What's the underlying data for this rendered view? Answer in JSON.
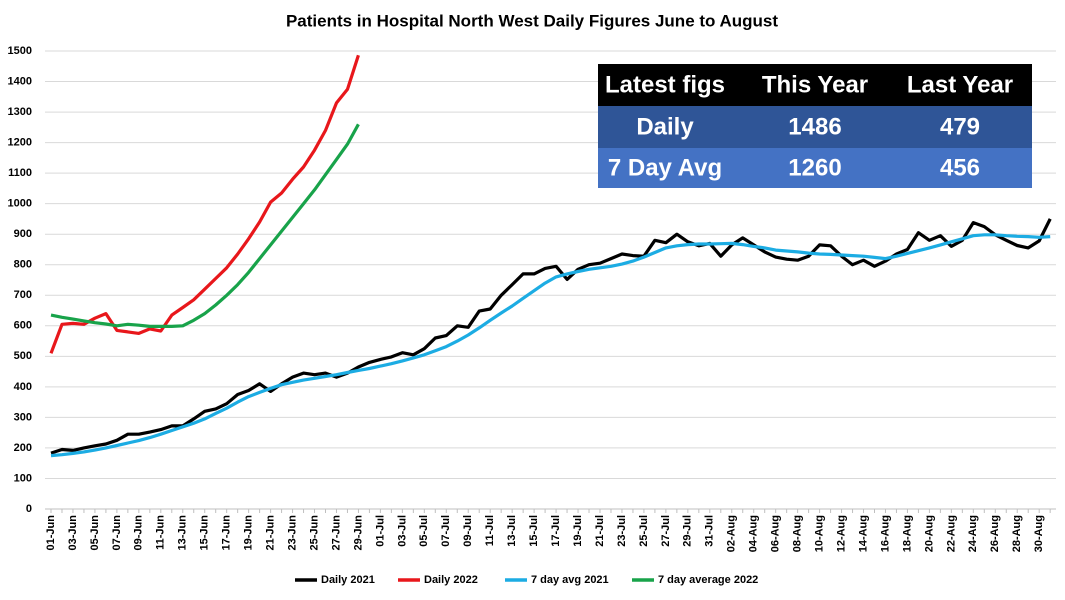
{
  "chart_data": {
    "type": "line",
    "title": "Patients in Hospital  North West Daily Figures June to August",
    "categories": [
      "01-Jun",
      null,
      "03-Jun",
      null,
      "05-Jun",
      null,
      "07-Jun",
      null,
      "09-Jun",
      null,
      "11-Jun",
      null,
      "13-Jun",
      null,
      "15-Jun",
      null,
      "17-Jun",
      null,
      "19-Jun",
      null,
      "21-Jun",
      null,
      "23-Jun",
      null,
      "25-Jun",
      null,
      "27-Jun",
      null,
      "29-Jun",
      null,
      "01-Jul",
      null,
      "03-Jul",
      null,
      "05-Jul",
      null,
      "07-Jul",
      null,
      "09-Jul",
      null,
      "11-Jul",
      null,
      "13-Jul",
      null,
      "15-Jul",
      null,
      "17-Jul",
      null,
      "19-Jul",
      null,
      "21-Jul",
      null,
      "23-Jul",
      null,
      "25-Jul",
      null,
      "27-Jul",
      null,
      "29-Jul",
      null,
      "31-Jul",
      null,
      "02-Aug",
      null,
      "04-Aug",
      null,
      "06-Aug",
      null,
      "08-Aug",
      null,
      "10-Aug",
      null,
      "12-Aug",
      null,
      "14-Aug",
      null,
      "16-Aug",
      null,
      "18-Aug",
      null,
      "20-Aug",
      null,
      "22-Aug",
      null,
      "24-Aug",
      null,
      "26-Aug",
      null,
      "28-Aug",
      null,
      "30-Aug",
      null
    ],
    "series": [
      {
        "name": "Daily 2021",
        "color": "#000000",
        "values": [
          183,
          195,
          192,
          200,
          207,
          213,
          225,
          245,
          245,
          252,
          260,
          272,
          272,
          295,
          320,
          328,
          345,
          375,
          388,
          410,
          385,
          410,
          432,
          445,
          440,
          445,
          432,
          445,
          465,
          480,
          490,
          498,
          512,
          505,
          525,
          560,
          568,
          600,
          595,
          648,
          655,
          700,
          735,
          770,
          770,
          788,
          795,
          752,
          785,
          800,
          805,
          820,
          835,
          830,
          828,
          880,
          872,
          900,
          875,
          862,
          870,
          828,
          865,
          888,
          865,
          842,
          825,
          818,
          815,
          828,
          865,
          862,
          828,
          800,
          815,
          795,
          812,
          835,
          850,
          905,
          880,
          895,
          860,
          880,
          938,
          925,
          898,
          880,
          863,
          855,
          878,
          950
        ]
      },
      {
        "name": "Daily 2022",
        "color": "#e8171b",
        "values": [
          510,
          605,
          608,
          605,
          625,
          640,
          585,
          580,
          575,
          590,
          583,
          635,
          660,
          685,
          720,
          755,
          790,
          835,
          885,
          940,
          1005,
          1035,
          1080,
          1120,
          1175,
          1240,
          1330,
          1375,
          1486,
          null,
          null,
          null,
          null,
          null,
          null,
          null,
          null,
          null,
          null,
          null,
          null,
          null,
          null,
          null,
          null,
          null,
          null,
          null,
          null,
          null,
          null,
          null,
          null,
          null,
          null,
          null,
          null,
          null,
          null,
          null,
          null,
          null,
          null,
          null,
          null,
          null,
          null,
          null,
          null,
          null,
          null,
          null,
          null,
          null,
          null,
          null,
          null,
          null,
          null,
          null,
          null,
          null,
          null,
          null,
          null,
          null,
          null,
          null,
          null,
          null,
          null,
          null
        ]
      },
      {
        "name": "7 day avg 2021",
        "color": "#1cace3",
        "values": [
          175,
          178,
          182,
          187,
          193,
          200,
          208,
          216,
          224,
          234,
          245,
          257,
          269,
          281,
          295,
          313,
          330,
          350,
          368,
          382,
          395,
          407,
          415,
          422,
          428,
          434,
          440,
          447,
          454,
          460,
          468,
          476,
          485,
          495,
          505,
          518,
          532,
          550,
          570,
          593,
          618,
          642,
          665,
          690,
          715,
          740,
          760,
          770,
          778,
          785,
          790,
          795,
          802,
          812,
          825,
          840,
          855,
          862,
          866,
          868,
          868,
          869,
          870,
          866,
          860,
          855,
          848,
          845,
          842,
          838,
          835,
          834,
          832,
          830,
          828,
          824,
          820,
          828,
          837,
          846,
          855,
          865,
          875,
          885,
          895,
          898,
          898,
          895,
          893,
          892,
          890,
          892
        ]
      },
      {
        "name": "7 day average 2022",
        "color": "#18a34a",
        "values": [
          635,
          628,
          622,
          616,
          610,
          606,
          600,
          605,
          602,
          598,
          598,
          598,
          600,
          618,
          640,
          668,
          700,
          735,
          775,
          820,
          865,
          910,
          955,
          1000,
          1045,
          1095,
          1145,
          1195,
          1260,
          null,
          null,
          null,
          null,
          null,
          null,
          null,
          null,
          null,
          null,
          null,
          null,
          null,
          null,
          null,
          null,
          null,
          null,
          null,
          null,
          null,
          null,
          null,
          null,
          null,
          null,
          null,
          null,
          null,
          null,
          null,
          null,
          null,
          null,
          null,
          null,
          null,
          null,
          null,
          null,
          null,
          null,
          null,
          null,
          null,
          null,
          null,
          null,
          null,
          null,
          null,
          null,
          null,
          null,
          null,
          null,
          null,
          null,
          null,
          null,
          null,
          null,
          null
        ]
      }
    ],
    "ylim": [
      0,
      1500
    ],
    "yticks": [
      0,
      100,
      200,
      300,
      400,
      500,
      600,
      700,
      800,
      900,
      1000,
      1100,
      1200,
      1300,
      1400,
      1500
    ],
    "grid": true,
    "legend": "bottom",
    "table": {
      "header": [
        "Latest figs",
        "This Year",
        "Last Year"
      ],
      "rows": [
        [
          "Daily",
          1486,
          479
        ],
        [
          "7 Day Avg",
          1260,
          456
        ]
      ]
    }
  }
}
